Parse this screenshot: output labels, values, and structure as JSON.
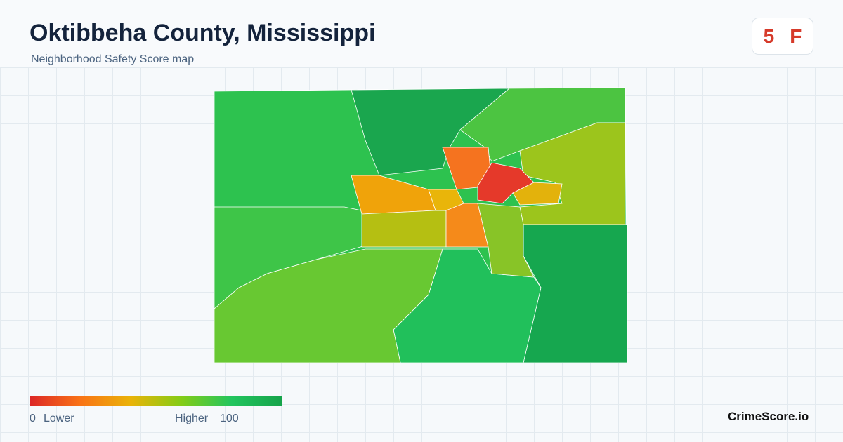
{
  "header": {
    "title": "Oktibbeha County, Mississippi",
    "subtitle": "Neighborhood Safety Score map"
  },
  "score": {
    "value": "5",
    "grade": "F"
  },
  "legend": {
    "min": "0",
    "min_label": "Lower",
    "max_label": "Higher",
    "max": "100"
  },
  "footer": {
    "brand": "CrimeScore.io"
  }
}
